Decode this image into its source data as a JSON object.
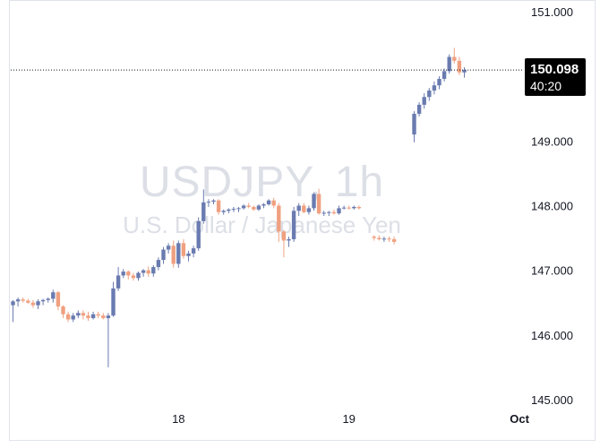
{
  "watermark": {
    "symbol": "USDJPY, 1h",
    "description": "U.S. Dollar / Japanese Yen"
  },
  "last_price": {
    "value": "150.098",
    "countdown": "40:20"
  },
  "colors": {
    "up": "#6a7bb0",
    "down": "#f0a080",
    "grid": "#e0e3eb",
    "text": "#131722"
  },
  "chart_data": {
    "type": "candlestick",
    "title": "",
    "y_ticks": [
      "145.000",
      "146.000",
      "147.000",
      "148.000",
      "149.000",
      "150.000",
      "151.000"
    ],
    "ylim": [
      145.0,
      151.0
    ],
    "x_ticks": [
      {
        "label": "18",
        "index": 33
      },
      {
        "label": "19",
        "index": 67
      },
      {
        "label": "Oct",
        "index": 101
      }
    ],
    "last_price": 150.098,
    "candles": [
      [
        0,
        146.46,
        146.54,
        146.2,
        146.52
      ],
      [
        1,
        146.52,
        146.58,
        146.44,
        146.55
      ],
      [
        2,
        146.55,
        146.58,
        146.5,
        146.53
      ],
      [
        3,
        146.53,
        146.56,
        146.48,
        146.5
      ],
      [
        4,
        146.5,
        146.54,
        146.42,
        146.46
      ],
      [
        5,
        146.46,
        146.55,
        146.4,
        146.52
      ],
      [
        6,
        146.52,
        146.56,
        146.46,
        146.54
      ],
      [
        7,
        146.54,
        146.58,
        146.5,
        146.56
      ],
      [
        8,
        146.56,
        146.7,
        146.5,
        146.66
      ],
      [
        9,
        146.66,
        146.68,
        146.38,
        146.44
      ],
      [
        10,
        146.44,
        146.46,
        146.26,
        146.32
      ],
      [
        11,
        146.32,
        146.36,
        146.2,
        146.24
      ],
      [
        12,
        146.24,
        146.34,
        146.2,
        146.3
      ],
      [
        13,
        146.3,
        146.38,
        146.26,
        146.34
      ],
      [
        14,
        146.34,
        146.38,
        146.24,
        146.3
      ],
      [
        15,
        146.3,
        146.36,
        146.22,
        146.26
      ],
      [
        16,
        146.26,
        146.36,
        146.24,
        146.32
      ],
      [
        17,
        146.32,
        146.36,
        146.26,
        146.3
      ],
      [
        18,
        146.3,
        146.34,
        146.24,
        146.26
      ],
      [
        19,
        146.26,
        146.34,
        145.5,
        146.3
      ],
      [
        20,
        146.3,
        146.82,
        146.28,
        146.72
      ],
      [
        21,
        146.72,
        147.05,
        146.68,
        146.92
      ],
      [
        22,
        146.92,
        147.02,
        146.88,
        146.98
      ],
      [
        23,
        146.98,
        147.0,
        146.86,
        146.92
      ],
      [
        24,
        146.92,
        146.96,
        146.84,
        146.88
      ],
      [
        25,
        146.88,
        146.98,
        146.84,
        146.96
      ],
      [
        26,
        146.96,
        147.02,
        146.9,
        147.0
      ],
      [
        27,
        147.0,
        147.06,
        146.9,
        146.95
      ],
      [
        28,
        146.95,
        147.08,
        146.9,
        147.05
      ],
      [
        29,
        147.05,
        147.2,
        147.0,
        147.16
      ],
      [
        30,
        147.16,
        147.36,
        147.1,
        147.32
      ],
      [
        31,
        147.32,
        147.42,
        147.26,
        147.38
      ],
      [
        32,
        147.38,
        147.46,
        147.04,
        147.1
      ],
      [
        33,
        147.1,
        147.46,
        147.04,
        147.42
      ],
      [
        34,
        147.42,
        147.48,
        147.18,
        147.22
      ],
      [
        35,
        147.22,
        147.3,
        147.14,
        147.26
      ],
      [
        36,
        147.26,
        147.38,
        147.2,
        147.34
      ],
      [
        37,
        147.34,
        147.82,
        147.3,
        147.76
      ],
      [
        38,
        147.76,
        148.25,
        147.72,
        148.05
      ],
      [
        39,
        148.05,
        148.1,
        147.98,
        148.06
      ],
      [
        40,
        148.06,
        148.1,
        148.02,
        148.08
      ],
      [
        41,
        148.08,
        148.1,
        147.86,
        147.9
      ],
      [
        42,
        147.9,
        147.94,
        147.86,
        147.92
      ],
      [
        43,
        147.92,
        147.96,
        147.88,
        147.94
      ],
      [
        44,
        147.94,
        147.98,
        147.9,
        147.95
      ],
      [
        45,
        147.95,
        147.98,
        147.9,
        147.96
      ],
      [
        46,
        147.96,
        148.02,
        147.94,
        148.0
      ],
      [
        47,
        148.0,
        148.04,
        147.96,
        147.98
      ],
      [
        48,
        147.98,
        148.0,
        147.92,
        147.94
      ],
      [
        49,
        147.94,
        148.02,
        147.92,
        148.0
      ],
      [
        50,
        148.0,
        148.04,
        147.96,
        148.02
      ],
      [
        51,
        148.02,
        148.1,
        148.0,
        148.08
      ],
      [
        52,
        148.08,
        148.12,
        147.96,
        148.0
      ],
      [
        53,
        148.0,
        148.04,
        147.44,
        147.6
      ],
      [
        54,
        147.6,
        147.62,
        147.2,
        147.46
      ],
      [
        55,
        147.46,
        147.52,
        147.36,
        147.48
      ],
      [
        56,
        147.48,
        147.98,
        147.44,
        147.92
      ],
      [
        57,
        147.92,
        148.04,
        147.84,
        148.0
      ],
      [
        58,
        148.0,
        148.04,
        147.88,
        147.9
      ],
      [
        59,
        147.9,
        148.0,
        147.86,
        147.96
      ],
      [
        60,
        147.96,
        148.2,
        147.92,
        148.18
      ],
      [
        61,
        148.18,
        148.26,
        147.86,
        147.88
      ],
      [
        62,
        147.88,
        147.92,
        147.84,
        147.89
      ],
      [
        63,
        147.89,
        147.92,
        147.84,
        147.9
      ],
      [
        64,
        147.9,
        147.94,
        147.86,
        147.88
      ],
      [
        65,
        147.88,
        148.0,
        147.86,
        147.96
      ],
      [
        66,
        147.96,
        148.0,
        147.94,
        147.97
      ],
      [
        67,
        147.97,
        148.0,
        147.94,
        147.96
      ],
      [
        68,
        147.96,
        148.0,
        147.94,
        147.98
      ],
      [
        69,
        147.98,
        148.0,
        147.94,
        147.96
      ],
      [
        72,
        147.52,
        147.54,
        147.46,
        147.5
      ],
      [
        73,
        147.5,
        147.54,
        147.46,
        147.48
      ],
      [
        74,
        147.48,
        147.52,
        147.44,
        147.49
      ],
      [
        75,
        147.49,
        147.52,
        147.44,
        147.48
      ],
      [
        76,
        147.48,
        147.52,
        147.4,
        147.44
      ],
      [
        80,
        149.1,
        149.46,
        148.98,
        149.42
      ],
      [
        81,
        149.42,
        149.6,
        149.38,
        149.56
      ],
      [
        82,
        149.56,
        149.74,
        149.5,
        149.68
      ],
      [
        83,
        149.68,
        149.82,
        149.62,
        149.78
      ],
      [
        84,
        149.78,
        149.92,
        149.72,
        149.86
      ],
      [
        85,
        149.86,
        150.0,
        149.8,
        149.96
      ],
      [
        86,
        149.96,
        150.12,
        149.92,
        150.08
      ],
      [
        87,
        150.08,
        150.34,
        150.04,
        150.3
      ],
      [
        88,
        150.3,
        150.44,
        150.2,
        150.24
      ],
      [
        89,
        150.24,
        150.3,
        150.02,
        150.06
      ],
      [
        90,
        150.06,
        150.14,
        149.98,
        150.098
      ]
    ]
  }
}
